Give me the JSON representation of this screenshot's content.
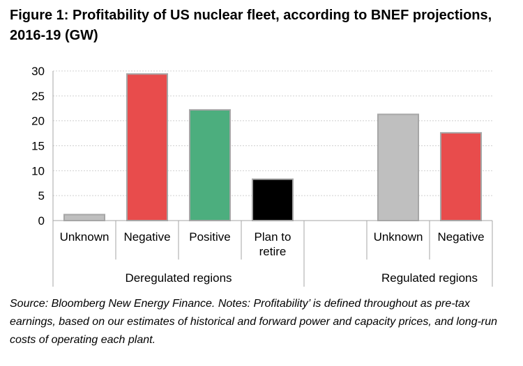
{
  "figure": {
    "title": "Figure 1:  Profitability of US nuclear fleet, according to BNEF projections, 2016-19 (GW)",
    "source": "Source: Bloomberg New Energy Finance. Notes: Profitability’ is defined throughout as pre-tax earnings, based on our estimates of historical and forward power and capacity prices, and long-run costs of operating each plant."
  },
  "chart_data": {
    "type": "bar",
    "ylim": [
      0,
      30
    ],
    "yticks": [
      0,
      5,
      10,
      15,
      20,
      25,
      30
    ],
    "grid": true,
    "groups": [
      {
        "name": "Deregulated regions",
        "bars": [
          {
            "label": "Unknown",
            "value": 1.2,
            "color": "#bfbfbf"
          },
          {
            "label": "Negative",
            "value": 29.4,
            "color": "#e84c4c"
          },
          {
            "label": "Positive",
            "value": 22.2,
            "color": "#4cae7e"
          },
          {
            "label": "Plan to retire",
            "value": 8.3,
            "color": "#000000"
          }
        ]
      },
      {
        "name": "Regulated regions",
        "bars": [
          {
            "label": "Unknown",
            "value": 21.3,
            "color": "#bfbfbf"
          },
          {
            "label": "Negative",
            "value": 17.6,
            "color": "#e84c4c"
          }
        ]
      }
    ]
  }
}
